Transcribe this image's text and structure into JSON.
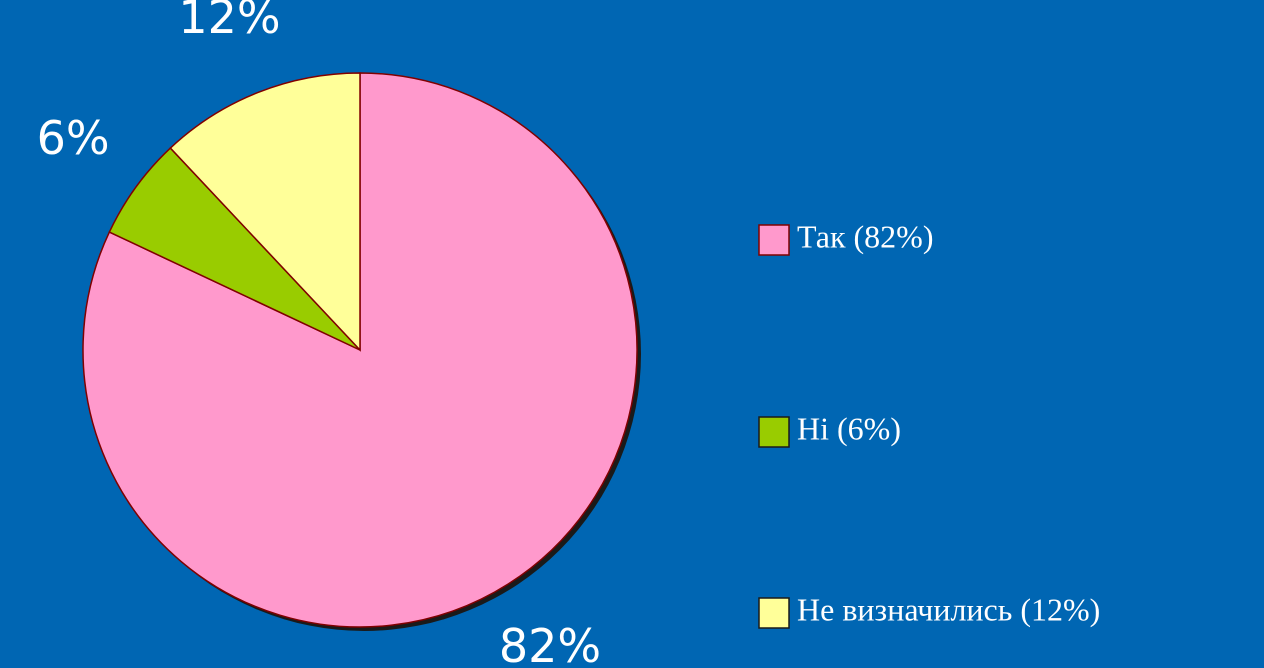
{
  "chart_data": {
    "type": "pie",
    "categories": [
      "Так (82%)",
      "Ні (6%)",
      "Не визначились (12%)"
    ],
    "values": [
      82,
      6,
      12
    ],
    "value_labels": [
      "82%",
      "6%",
      "12%"
    ],
    "colors": [
      "#ff99cc",
      "#99cc00",
      "#ffff99"
    ]
  }
}
